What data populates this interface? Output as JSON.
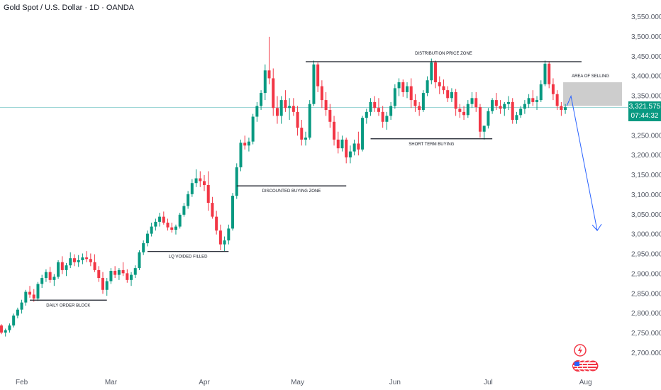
{
  "chart_data": {
    "type": "candlestick",
    "title": "Gold Spot / U.S. Dollar · 1D · OANDA",
    "x_tick_labels": [
      "Feb",
      "Mar",
      "Apr",
      "May",
      "Jun",
      "Jul",
      "Aug"
    ],
    "y_tick_labels": [
      "3,550.000",
      "3,500.000",
      "3,450.000",
      "3,400.000",
      "3,350.000",
      "3,300.000",
      "3,250.000",
      "3,200.000",
      "3,150.000",
      "3,100.000",
      "3,050.000",
      "3,000.000",
      "2,950.000",
      "2,900.000",
      "2,850.000",
      "2,800.000",
      "2,750.000",
      "2,700.000"
    ],
    "ylim": [
      2660,
      3575
    ],
    "current_price": "3,321.575",
    "countdown": "07:44:32",
    "colors": {
      "up": "#089981",
      "down": "#f23645",
      "projection": "#2962ff",
      "zone": "#c8c8c8"
    },
    "annotations": [
      {
        "text": "DISTRIBUTION PRICE ZONE",
        "price": 3437
      },
      {
        "text": "AREA OF SELLING",
        "price_top": 3385,
        "price_bottom": 3325
      },
      {
        "text": "SHORT TERM BUYING",
        "price": 3242
      },
      {
        "text": "DISCOUNTED BUYING ZONE",
        "price": 3123
      },
      {
        "text": "LQ VOIDED FILLED",
        "price": 2957
      },
      {
        "text": "DAILY ORDER BLOCK",
        "price": 2834
      }
    ],
    "projection": {
      "from_price": 3350,
      "to_price": 3010
    },
    "candles": [
      [
        2770,
        2773,
        2748,
        2752
      ],
      [
        2752,
        2762,
        2742,
        2758
      ],
      [
        2758,
        2775,
        2752,
        2770
      ],
      [
        2770,
        2800,
        2765,
        2795
      ],
      [
        2795,
        2815,
        2788,
        2810
      ],
      [
        2810,
        2835,
        2800,
        2828
      ],
      [
        2828,
        2860,
        2820,
        2855
      ],
      [
        2855,
        2870,
        2840,
        2848
      ],
      [
        2848,
        2862,
        2830,
        2838
      ],
      [
        2838,
        2880,
        2832,
        2875
      ],
      [
        2875,
        2898,
        2865,
        2890
      ],
      [
        2890,
        2912,
        2880,
        2905
      ],
      [
        2905,
        2918,
        2878,
        2885
      ],
      [
        2885,
        2900,
        2870,
        2893
      ],
      [
        2893,
        2935,
        2888,
        2930
      ],
      [
        2930,
        2945,
        2900,
        2910
      ],
      [
        2910,
        2928,
        2895,
        2922
      ],
      [
        2922,
        2955,
        2915,
        2940
      ],
      [
        2940,
        2950,
        2920,
        2930
      ],
      [
        2930,
        2948,
        2918,
        2935
      ],
      [
        2935,
        2952,
        2925,
        2942
      ],
      [
        2942,
        2958,
        2930,
        2938
      ],
      [
        2938,
        2952,
        2920,
        2930
      ],
      [
        2930,
        2950,
        2905,
        2910
      ],
      [
        2910,
        2920,
        2880,
        2890
      ],
      [
        2890,
        2905,
        2850,
        2860
      ],
      [
        2860,
        2890,
        2845,
        2882
      ],
      [
        2882,
        2915,
        2875,
        2908
      ],
      [
        2908,
        2920,
        2890,
        2898
      ],
      [
        2898,
        2915,
        2885,
        2910
      ],
      [
        2910,
        2930,
        2895,
        2902
      ],
      [
        2902,
        2912,
        2878,
        2885
      ],
      [
        2885,
        2905,
        2870,
        2898
      ],
      [
        2898,
        2922,
        2890,
        2915
      ],
      [
        2915,
        2960,
        2910,
        2955
      ],
      [
        2955,
        2985,
        2948,
        2978
      ],
      [
        2978,
        3010,
        2970,
        3002
      ],
      [
        3002,
        3030,
        2995,
        3020
      ],
      [
        3020,
        3040,
        3010,
        3032
      ],
      [
        3032,
        3055,
        3020,
        3045
      ],
      [
        3045,
        3058,
        3025,
        3030
      ],
      [
        3030,
        3040,
        3010,
        3018
      ],
      [
        3018,
        3030,
        3005,
        3012
      ],
      [
        3012,
        3025,
        3000,
        3020
      ],
      [
        3020,
        3055,
        3015,
        3050
      ],
      [
        3050,
        3080,
        3045,
        3072
      ],
      [
        3072,
        3110,
        3065,
        3102
      ],
      [
        3102,
        3140,
        3095,
        3130
      ],
      [
        3130,
        3165,
        3120,
        3142
      ],
      [
        3142,
        3160,
        3120,
        3135
      ],
      [
        3135,
        3150,
        3110,
        3125
      ],
      [
        3125,
        3160,
        3060,
        3080
      ],
      [
        3080,
        3095,
        3040,
        3045
      ],
      [
        3045,
        3060,
        3000,
        3010
      ],
      [
        3010,
        3025,
        2960,
        2975
      ],
      [
        2975,
        2995,
        2958,
        2985
      ],
      [
        2985,
        3025,
        2975,
        3015
      ],
      [
        3015,
        3105,
        3010,
        3098
      ],
      [
        3098,
        3180,
        3090,
        3170
      ],
      [
        3170,
        3240,
        3160,
        3232
      ],
      [
        3232,
        3250,
        3215,
        3225
      ],
      [
        3225,
        3245,
        3210,
        3235
      ],
      [
        3235,
        3305,
        3228,
        3298
      ],
      [
        3298,
        3335,
        3285,
        3325
      ],
      [
        3325,
        3365,
        3315,
        3358
      ],
      [
        3358,
        3430,
        3340,
        3415
      ],
      [
        3415,
        3500,
        3380,
        3395
      ],
      [
        3395,
        3420,
        3300,
        3320
      ],
      [
        3320,
        3350,
        3280,
        3300
      ],
      [
        3300,
        3350,
        3280,
        3340
      ],
      [
        3340,
        3365,
        3310,
        3320
      ],
      [
        3320,
        3345,
        3290,
        3325
      ],
      [
        3325,
        3345,
        3300,
        3310
      ],
      [
        3310,
        3325,
        3250,
        3270
      ],
      [
        3270,
        3290,
        3225,
        3240
      ],
      [
        3240,
        3260,
        3225,
        3245
      ],
      [
        3245,
        3340,
        3240,
        3330
      ],
      [
        3330,
        3440,
        3325,
        3430
      ],
      [
        3430,
        3435,
        3360,
        3375
      ],
      [
        3375,
        3390,
        3320,
        3340
      ],
      [
        3340,
        3360,
        3300,
        3315
      ],
      [
        3315,
        3330,
        3270,
        3285
      ],
      [
        3285,
        3300,
        3225,
        3240
      ],
      [
        3240,
        3260,
        3205,
        3218
      ],
      [
        3218,
        3250,
        3210,
        3240
      ],
      [
        3240,
        3245,
        3180,
        3195
      ],
      [
        3195,
        3225,
        3180,
        3210
      ],
      [
        3210,
        3240,
        3200,
        3230
      ],
      [
        3230,
        3260,
        3200,
        3215
      ],
      [
        3215,
        3300,
        3210,
        3295
      ],
      [
        3295,
        3318,
        3280,
        3310
      ],
      [
        3310,
        3345,
        3300,
        3335
      ],
      [
        3335,
        3350,
        3310,
        3320
      ],
      [
        3320,
        3345,
        3300,
        3310
      ],
      [
        3310,
        3325,
        3270,
        3285
      ],
      [
        3285,
        3310,
        3265,
        3300
      ],
      [
        3300,
        3335,
        3290,
        3325
      ],
      [
        3325,
        3380,
        3318,
        3370
      ],
      [
        3370,
        3395,
        3350,
        3385
      ],
      [
        3385,
        3392,
        3348,
        3360
      ],
      [
        3360,
        3385,
        3345,
        3375
      ],
      [
        3375,
        3395,
        3320,
        3340
      ],
      [
        3340,
        3355,
        3310,
        3325
      ],
      [
        3325,
        3335,
        3300,
        3315
      ],
      [
        3315,
        3365,
        3310,
        3358
      ],
      [
        3358,
        3400,
        3350,
        3390
      ],
      [
        3390,
        3445,
        3380,
        3435
      ],
      [
        3435,
        3440,
        3370,
        3385
      ],
      [
        3385,
        3400,
        3355,
        3375
      ],
      [
        3375,
        3392,
        3355,
        3365
      ],
      [
        3365,
        3375,
        3335,
        3345
      ],
      [
        3345,
        3370,
        3335,
        3360
      ],
      [
        3360,
        3368,
        3300,
        3318
      ],
      [
        3318,
        3330,
        3295,
        3310
      ],
      [
        3310,
        3325,
        3290,
        3302
      ],
      [
        3302,
        3340,
        3295,
        3330
      ],
      [
        3330,
        3360,
        3320,
        3345
      ],
      [
        3345,
        3360,
        3310,
        3322
      ],
      [
        3322,
        3330,
        3245,
        3260
      ],
      [
        3260,
        3275,
        3240,
        3275
      ],
      [
        3275,
        3320,
        3268,
        3312
      ],
      [
        3312,
        3345,
        3305,
        3340
      ],
      [
        3340,
        3358,
        3315,
        3325
      ],
      [
        3325,
        3340,
        3305,
        3318
      ],
      [
        3318,
        3335,
        3300,
        3330
      ],
      [
        3330,
        3350,
        3315,
        3335
      ],
      [
        3335,
        3345,
        3280,
        3290
      ],
      [
        3290,
        3310,
        3280,
        3302
      ],
      [
        3302,
        3325,
        3295,
        3318
      ],
      [
        3318,
        3340,
        3305,
        3330
      ],
      [
        3330,
        3355,
        3320,
        3345
      ],
      [
        3345,
        3365,
        3325,
        3335
      ],
      [
        3335,
        3350,
        3315,
        3340
      ],
      [
        3340,
        3390,
        3335,
        3380
      ],
      [
        3380,
        3440,
        3375,
        3432
      ],
      [
        3432,
        3438,
        3370,
        3380
      ],
      [
        3380,
        3395,
        3340,
        3355
      ],
      [
        3355,
        3365,
        3315,
        3325
      ],
      [
        3325,
        3335,
        3300,
        3315
      ],
      [
        3315,
        3330,
        3305,
        3322
      ]
    ]
  }
}
